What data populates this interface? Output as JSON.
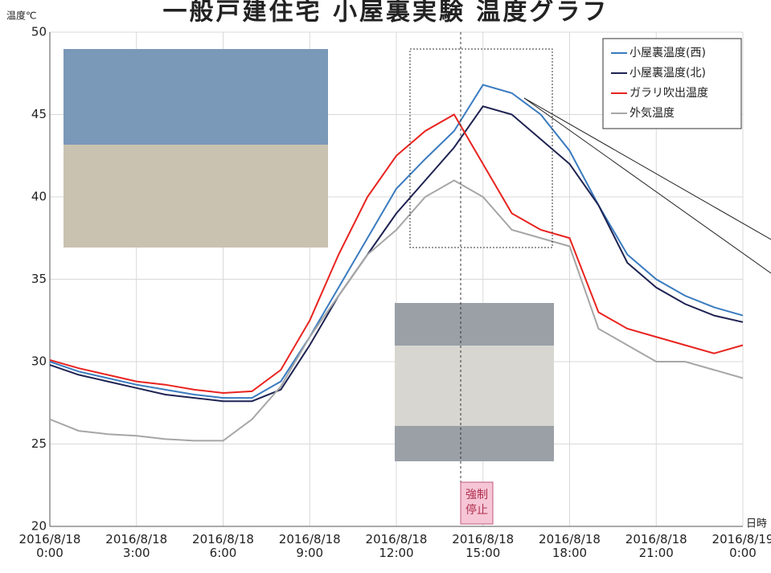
{
  "chart_data": {
    "type": "line",
    "title": "一般戸建住宅 小屋裏実験 温度グラフ",
    "y_label": "温度℃",
    "x_label": "日時",
    "annotation": "強制 停止",
    "x": [
      0,
      1,
      2,
      3,
      4,
      5,
      6,
      7,
      8,
      9,
      10,
      11,
      12,
      13,
      14,
      15,
      16,
      17,
      18,
      19,
      20,
      21,
      22,
      23,
      24
    ],
    "xlim": [
      0,
      24
    ],
    "xticks": [
      {
        "value": 0,
        "label": "2016/8/18 0:00"
      },
      {
        "value": 3,
        "label": "2016/8/18 3:00"
      },
      {
        "value": 6,
        "label": "2016/8/18 6:00"
      },
      {
        "value": 9,
        "label": "2016/8/18 9:00"
      },
      {
        "value": 12,
        "label": "2016/8/18 12:00"
      },
      {
        "value": 15,
        "label": "2016/8/18 15:00"
      },
      {
        "value": 18,
        "label": "2016/8/18 18:00"
      },
      {
        "value": 21,
        "label": "2016/8/18 21:00"
      },
      {
        "value": 24,
        "label": "2016/8/19 0:00"
      }
    ],
    "ylim": [
      20,
      50
    ],
    "yticks": [
      20,
      25,
      30,
      35,
      40,
      45,
      50
    ],
    "grid": true,
    "legend": "top-right",
    "series": [
      {
        "name": "小屋裏温度(西)",
        "color": "#3a7bbf",
        "values": [
          30.0,
          29.4,
          29.0,
          28.6,
          28.3,
          28.0,
          27.8,
          27.8,
          28.8,
          31.5,
          34.5,
          37.5,
          40.5,
          42.3,
          44.0,
          46.8,
          46.3,
          45.0,
          42.8,
          39.5,
          36.5,
          35.0,
          34.0,
          33.3,
          32.8
        ]
      },
      {
        "name": "小屋裏温度(北)",
        "color": "#1f2352",
        "values": [
          29.8,
          29.2,
          28.8,
          28.4,
          28.0,
          27.8,
          27.6,
          27.6,
          28.3,
          31.0,
          34.0,
          36.5,
          39.0,
          41.0,
          43.0,
          45.5,
          45.0,
          43.5,
          42.0,
          39.5,
          36.0,
          34.5,
          33.5,
          32.8,
          32.4
        ]
      },
      {
        "name": "ガラリ吹出温度",
        "color": "#e8231f",
        "values": [
          30.1,
          29.6,
          29.2,
          28.8,
          28.6,
          28.3,
          28.1,
          28.2,
          29.5,
          32.5,
          36.5,
          40.0,
          42.5,
          44.0,
          45.0,
          42.0,
          39.0,
          38.0,
          37.5,
          33.0,
          32.0,
          31.5,
          31.0,
          30.5,
          31.0
        ]
      },
      {
        "name": "外気温度",
        "color": "#a6a6a6",
        "values": [
          26.5,
          25.8,
          25.6,
          25.5,
          25.3,
          25.2,
          25.2,
          26.5,
          28.5,
          31.5,
          34.0,
          36.5,
          38.0,
          40.0,
          41.0,
          40.0,
          38.0,
          37.5,
          37.0,
          32.0,
          31.0,
          30.0,
          30.0,
          29.5,
          29.0
        ]
      }
    ]
  }
}
